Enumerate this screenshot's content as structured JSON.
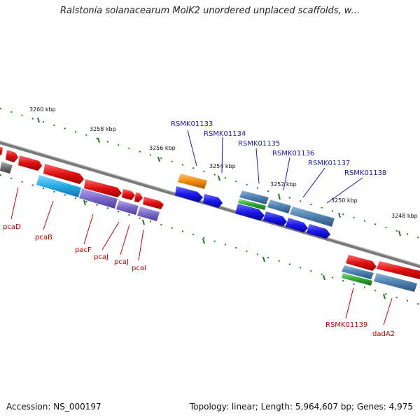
{
  "title": "Ralstonia solanacearum MolK2 unordered unplaced scaffolds, w...",
  "footer": {
    "accession": "Accession: NS_000197",
    "topology": "Topology: linear; Length: 5,964,607 bp; Genes: 4,975"
  },
  "colors": {
    "red": "#e01010",
    "blue": "#1a1ae6",
    "steel": "#4d7fb0",
    "cyan": "#27a9e1",
    "purple": "#7a68c9",
    "orange": "#f08a10",
    "green": "#2ea82e",
    "gray": "#6e6e6e",
    "label_red": "#cc0000",
    "label_blue": "#1818b8"
  },
  "ticks": [
    "3260 kbp",
    "3258 kbp",
    "3256 kbp",
    "3254 kbp",
    "3252 kbp",
    "3250 kbp",
    "3248 kbp"
  ],
  "genes": {
    "pcaD": "pcaD",
    "pcaB": "pcaB",
    "pacF": "pacF",
    "pcaJ": "pcaJ",
    "pcaJ2": "pcaJ",
    "pcaI": "pcaI",
    "RSMK01139": "RSMK01139",
    "dadA2": "dadA2",
    "RSMK01133": "RSMK01133",
    "RSMK01134": "RSMK01134",
    "RSMK01135": "RSMK01135",
    "RSMK01136": "RSMK01136",
    "RSMK01137": "RSMK01137",
    "RSMK01138": "RSMK01138"
  }
}
